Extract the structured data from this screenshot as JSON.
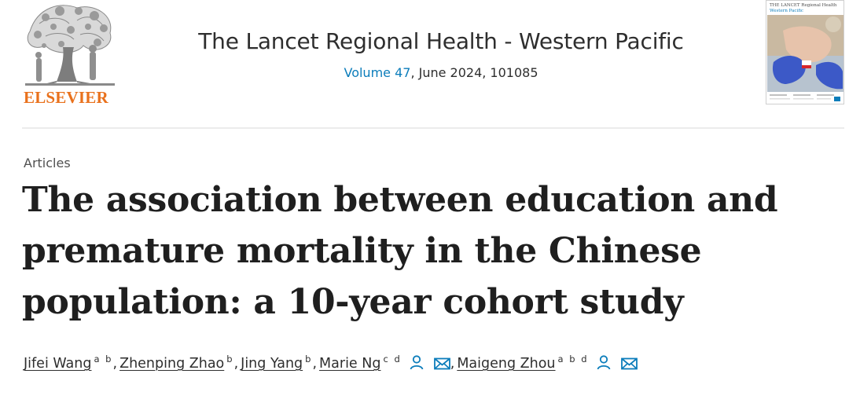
{
  "publisher": {
    "name": "ELSEVIER",
    "brand_color": "#e9711c"
  },
  "journal": {
    "title": "The Lancet Regional Health - Western Pacific",
    "volume_link": "Volume 47",
    "issue_rest": ", June 2024, 101085",
    "link_color": "#0c7dbb"
  },
  "cover": {
    "line1": "THE LANCET Regional Health",
    "line2": "Western Pacific"
  },
  "article": {
    "section": "Articles",
    "title": "The association between education and premature mortality in the Chinese population: a 10-year cohort study"
  },
  "authors": [
    {
      "name": "Jifei Wang",
      "affiliations": "a b",
      "icons": []
    },
    {
      "name": "Zhenping Zhao",
      "affiliations": "b",
      "icons": []
    },
    {
      "name": "Jing Yang",
      "affiliations": "b",
      "icons": []
    },
    {
      "name": "Marie Ng",
      "affiliations": "c d",
      "icons": [
        "person-icon",
        "envelope-icon"
      ]
    },
    {
      "name": "Maigeng Zhou",
      "affiliations": "a b d",
      "icons": [
        "person-icon",
        "envelope-icon"
      ]
    }
  ]
}
